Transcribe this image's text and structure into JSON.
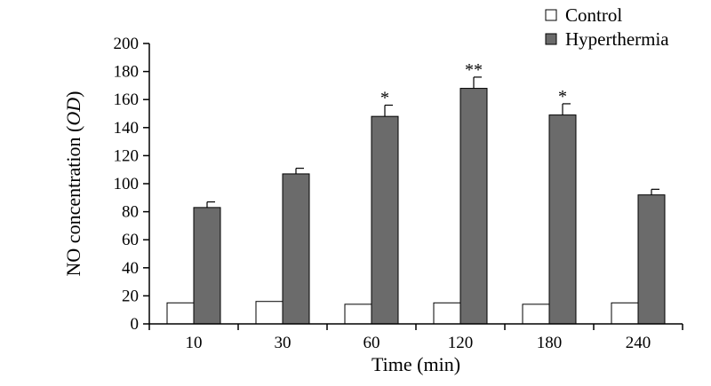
{
  "chart_data": {
    "type": "bar",
    "xlabel": "Time (min)",
    "ylabel_main": "NO concentration (",
    "ylabel_italic": "OD",
    "ylabel_close": ")",
    "categories": [
      "10",
      "30",
      "60",
      "120",
      "180",
      "240"
    ],
    "ylim": [
      0,
      200
    ],
    "yticks": [
      0,
      20,
      40,
      60,
      80,
      100,
      120,
      140,
      160,
      180,
      200
    ],
    "legend_position": "top-right",
    "grid": false,
    "series": [
      {
        "name": "Control",
        "color": "#ffffff",
        "values": [
          15,
          16,
          14,
          15,
          14,
          15
        ],
        "errors": [
          0,
          0,
          0,
          0,
          0,
          0
        ]
      },
      {
        "name": "Hyperthermia",
        "color": "#6b6b6b",
        "values": [
          83,
          107,
          148,
          168,
          149,
          92
        ],
        "errors": [
          4,
          4,
          8,
          8,
          8,
          4
        ]
      }
    ],
    "annotations": [
      "",
      "",
      "*",
      "**",
      "*",
      ""
    ]
  }
}
